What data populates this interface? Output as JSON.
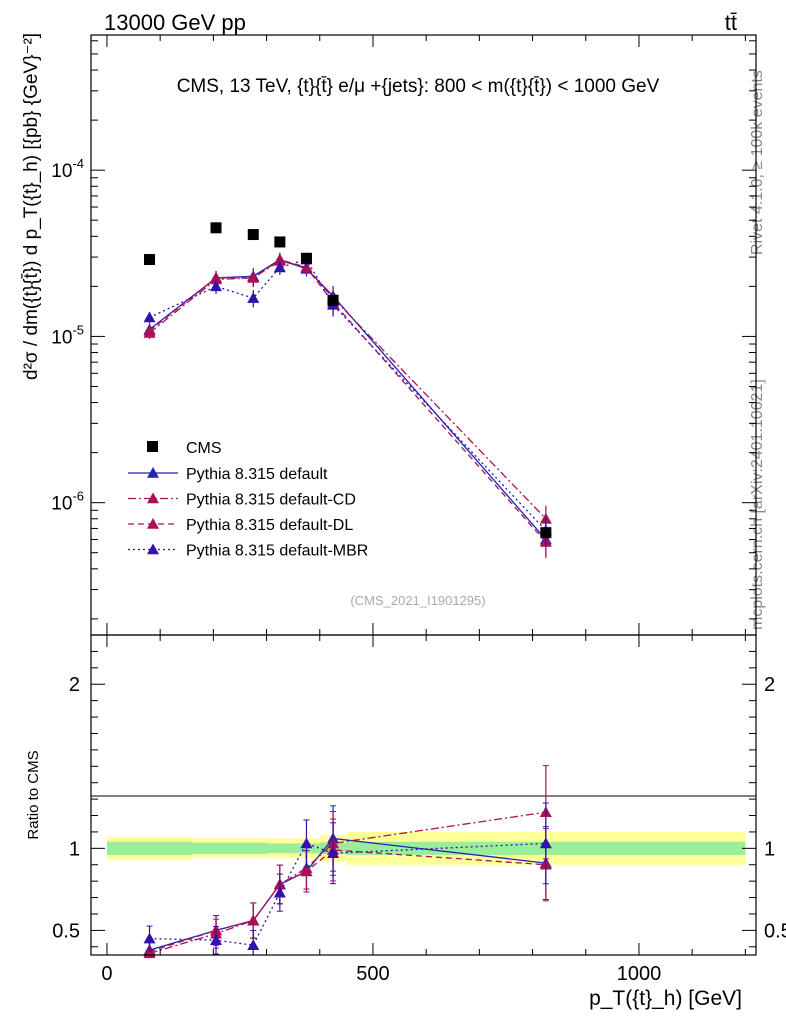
{
  "header": {
    "left": "13000 GeV pp",
    "right": "tt̄"
  },
  "side": {
    "rivet": "Rivet 4.1.0, ≥ 100k events",
    "mcplots": "mcplots.cern.ch [arXiv:2401.10621]"
  },
  "chart_data": {
    "type": "scatter",
    "title": "CMS, 13 TeV, {t}{t̄} e/μ +{jets}: 800 < m({t}{t̄}) < 1000 GeV",
    "analysis": "(CMS_2021_I1901295)",
    "ylabel_main": "d²σ / dm({t}{t̄}) d p_T({t}_h) [{pb} {GeV}⁻²]",
    "ylabel_ratio": "Ratio to CMS",
    "xlabel": "p_T({t}_h) [GeV]",
    "xlim": [
      -30,
      1220
    ],
    "ylim_main": [
      1.6e-07,
      0.00065
    ],
    "yscale_main": "log",
    "ylim_ratio": [
      0.35,
      2.3
    ],
    "x_ticks": [
      0,
      500,
      1000
    ],
    "y_ticks_main": [
      {
        "v": 1e-06,
        "label": "10^-6"
      },
      {
        "v": 1e-05,
        "label": "10^-5"
      },
      {
        "v": 0.0001,
        "label": "10^-4"
      }
    ],
    "y_ticks_ratio": [
      0.5,
      1,
      2
    ],
    "legend_position": "lower-left",
    "bin_edges": [
      0,
      160,
      250,
      300,
      350,
      400,
      450,
      1200
    ],
    "band_inner": [
      0.04,
      0.035,
      0.035,
      0.03,
      0.03,
      0.035,
      0.04
    ],
    "band_outer": [
      0.07,
      0.06,
      0.06,
      0.06,
      0.06,
      0.08,
      0.1
    ],
    "data": {
      "name": "CMS",
      "x": [
        80,
        205,
        275,
        325,
        375,
        425,
        825
      ],
      "y": [
        2.9e-05,
        4.5e-05,
        4.1e-05,
        3.7e-05,
        2.95e-05,
        1.65e-05,
        6.6e-07
      ]
    },
    "series": [
      {
        "name": "Pythia 8.315 default",
        "color": "#2222bb",
        "dash": "",
        "x": [
          80,
          205,
          275,
          325,
          375,
          425,
          825
        ],
        "y": [
          1.1e-05,
          2.25e-05,
          2.3e-05,
          2.9e-05,
          2.55e-05,
          1.75e-05,
          6e-07
        ],
        "err": [
          0.08,
          0.1,
          0.12,
          0.1,
          0.1,
          0.15,
          0.2
        ],
        "ratio": [
          0.38,
          0.5,
          0.56,
          0.78,
          0.86,
          1.06,
          0.91
        ]
      },
      {
        "name": "Pythia 8.315 default-CD",
        "color": "#aa1155",
        "dash": "8,3,2,3",
        "x": [
          80,
          205,
          275,
          325,
          375,
          425,
          825
        ],
        "y": [
          1.05e-05,
          2.2e-05,
          2.25e-05,
          2.85e-05,
          2.6e-05,
          1.7e-05,
          8e-07
        ],
        "err": [
          0.08,
          0.1,
          0.12,
          0.1,
          0.1,
          0.15,
          0.2
        ],
        "ratio": [
          0.36,
          0.48,
          0.56,
          0.78,
          0.88,
          1.03,
          1.22
        ]
      },
      {
        "name": "Pythia 8.315 default-DL",
        "color": "#aa1155",
        "dash": "6,4",
        "x": [
          80,
          205,
          275,
          325,
          375,
          425,
          825
        ],
        "y": [
          1.08e-05,
          2.25e-05,
          2.25e-05,
          2.9e-05,
          2.6e-05,
          1.6e-05,
          5.8e-07
        ],
        "err": [
          0.08,
          0.1,
          0.12,
          0.1,
          0.1,
          0.15,
          0.2
        ],
        "ratio": [
          0.37,
          0.5,
          0.56,
          0.78,
          0.86,
          0.99,
          0.9
        ]
      },
      {
        "name": "Pythia 8.315 default-MBR",
        "color": "#3311aa",
        "dash": "2,3",
        "x": [
          80,
          205,
          275,
          325,
          375,
          425,
          825
        ],
        "y": [
          1.3e-05,
          2e-05,
          1.7e-05,
          2.6e-05,
          2.9e-05,
          1.55e-05,
          6.8e-07
        ],
        "err": [
          0.08,
          0.1,
          0.12,
          0.1,
          0.1,
          0.15,
          0.2
        ],
        "ratio": [
          0.45,
          0.44,
          0.41,
          0.73,
          1.03,
          0.97,
          1.03
        ]
      }
    ]
  }
}
